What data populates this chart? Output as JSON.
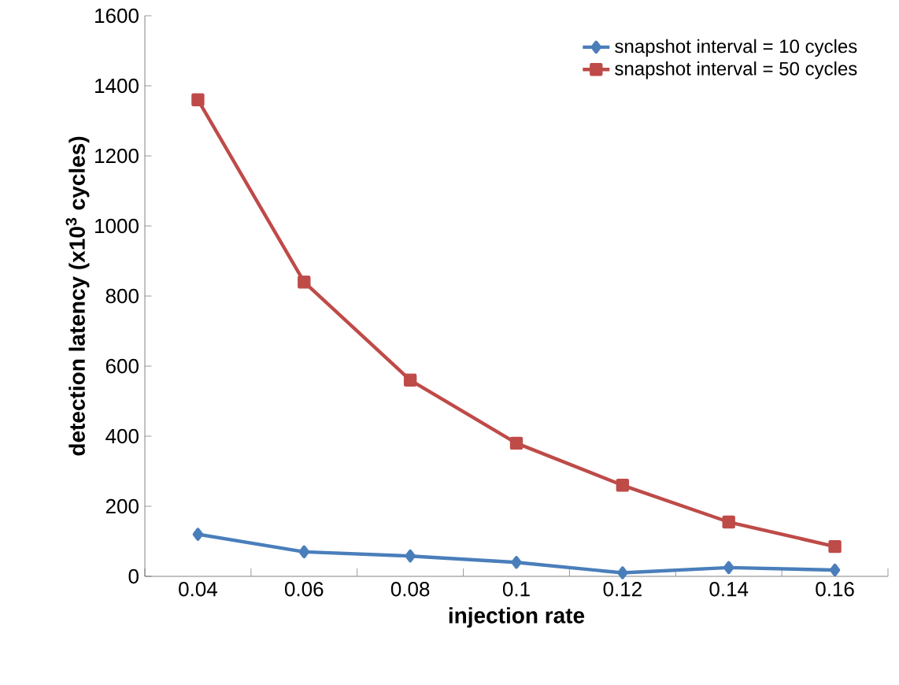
{
  "chart_data": {
    "type": "line",
    "xlabel": "injection rate",
    "ylabel": "detection latency (x10$^{3}$ cycles)",
    "categories": [
      "0.04",
      "0.06",
      "0.08",
      "0.1",
      "0.12",
      "0.14",
      "0.16"
    ],
    "ylim": [
      0,
      1600
    ],
    "yticks": [
      0,
      200,
      400,
      600,
      800,
      1000,
      1200,
      1400,
      1600
    ],
    "grid": false,
    "legend": "top right",
    "line_style": "solid",
    "series": [
      {
        "name": "snapshot interval = 10 cycles",
        "color": "#4a7ebb",
        "marker": "diamond",
        "values": [
          120,
          70,
          58,
          40,
          10,
          25,
          18
        ]
      },
      {
        "name": "snapshot interval = 50 cycles",
        "color": "#be4b48",
        "marker": "square",
        "values": [
          1360,
          840,
          560,
          380,
          260,
          155,
          85
        ]
      }
    ]
  }
}
